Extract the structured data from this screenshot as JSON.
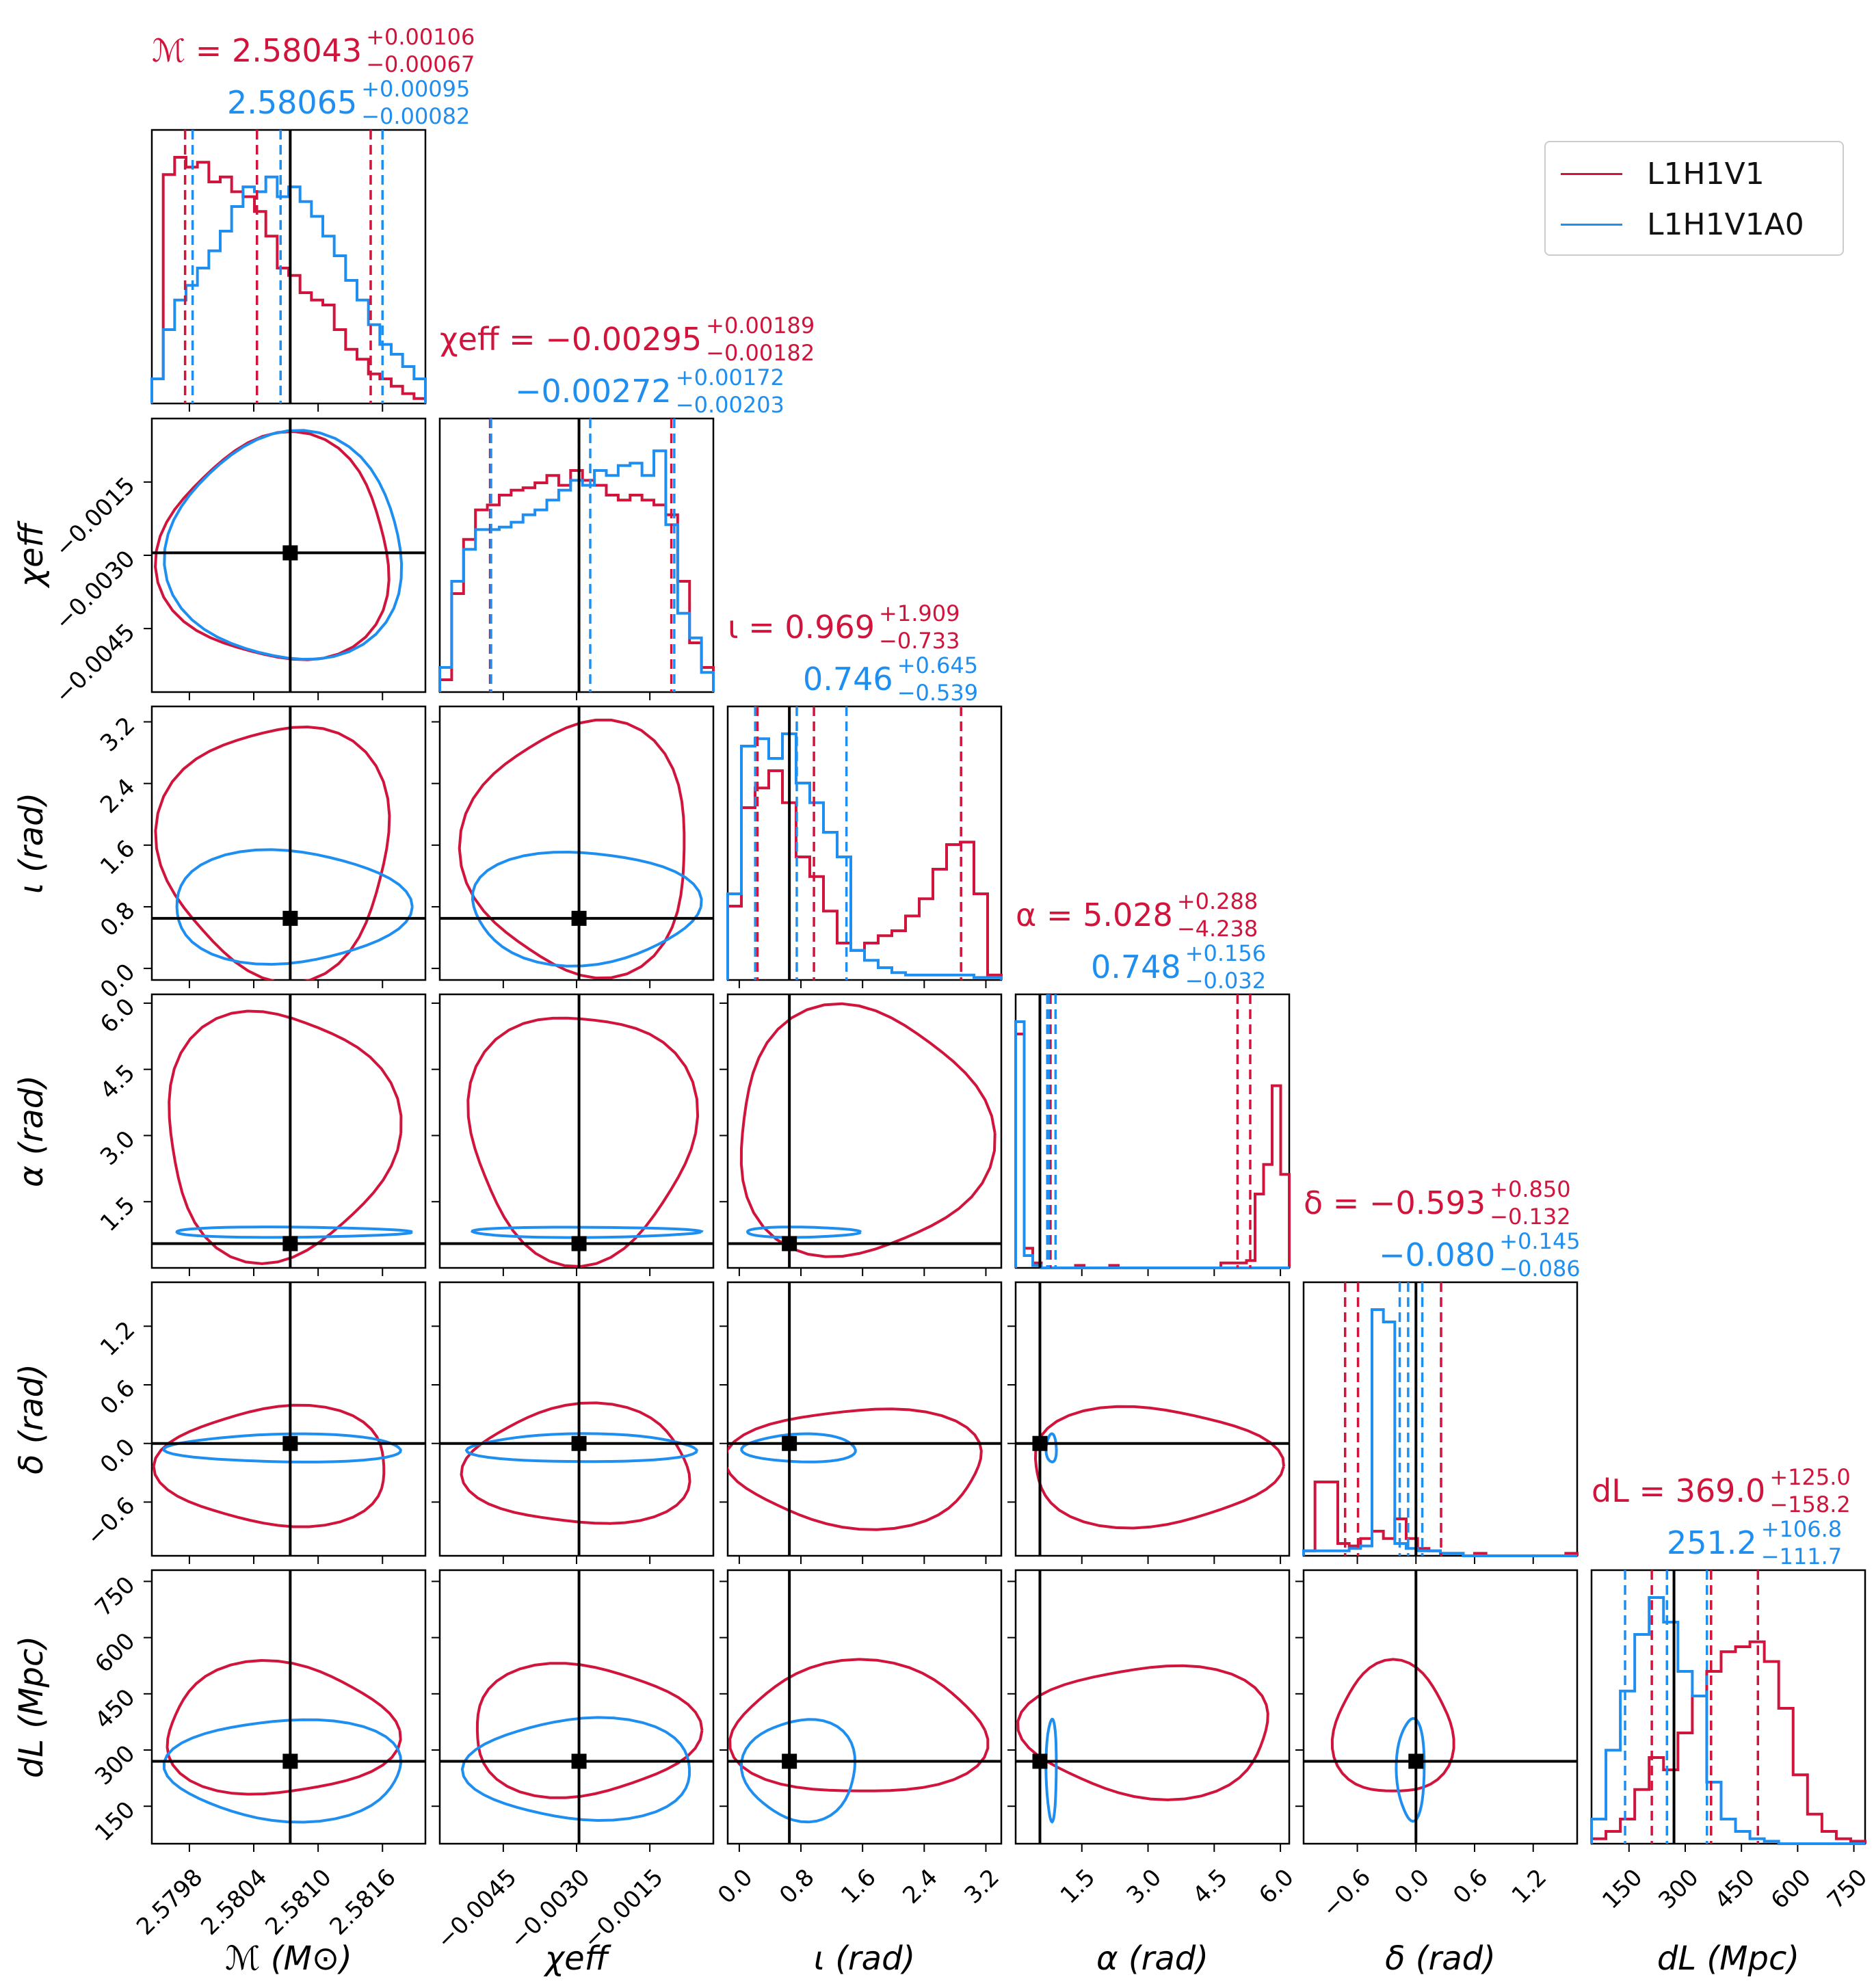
{
  "colors": {
    "net_a": "#d1143c",
    "net_b": "#1e8ff0",
    "truth": "#000000",
    "axis": "#000000"
  },
  "legend": {
    "placement": "top-right",
    "entries": [
      "L1H1V1",
      "L1H1V1A0"
    ]
  },
  "chart_data": {
    "type": "corner",
    "params": [
      {
        "key": "Mc",
        "label": "ℳ (M⊙)",
        "range": [
          2.57945,
          2.582
        ],
        "ticks": [
          2.5798,
          2.5804,
          2.581,
          2.5816
        ],
        "tick_labels": [
          "2.5798",
          "2.5804",
          "2.5810",
          "2.5816"
        ],
        "truth": 2.58074,
        "a": {
          "median": "2.58043",
          "plus": "+0.00106",
          "minus": "−0.00067",
          "q": [
            2.57976,
            2.58043,
            2.58149
          ]
        },
        "b": {
          "median": "2.58065",
          "plus": "+0.00095",
          "minus": "−0.00082",
          "q": [
            2.57983,
            2.58065,
            2.5816
          ]
        },
        "title_symbol": "ℳ = ",
        "hist_a": [
          0.1,
          0.93,
          1.0,
          0.96,
          0.98,
          0.9,
          0.92,
          0.86,
          0.84,
          0.78,
          0.68,
          0.55,
          0.52,
          0.45,
          0.42,
          0.4,
          0.3,
          0.22,
          0.18,
          0.12,
          0.1,
          0.07,
          0.04,
          0.02
        ],
        "hist_b": [
          0.1,
          0.3,
          0.42,
          0.48,
          0.55,
          0.62,
          0.7,
          0.8,
          0.88,
          0.86,
          0.92,
          0.84,
          0.88,
          0.82,
          0.76,
          0.68,
          0.6,
          0.5,
          0.42,
          0.32,
          0.24,
          0.2,
          0.15,
          0.1
        ]
      },
      {
        "key": "chi",
        "label": "χeff",
        "range": [
          -0.0058,
          -0.0002
        ],
        "ticks": [
          -0.0045,
          -0.003,
          -0.0015
        ],
        "tick_labels": [
          "−0.0045",
          "−0.0030",
          "−0.0015"
        ],
        "truth": -0.00295,
        "a": {
          "median": "−0.00295",
          "plus": "+0.00189",
          "minus": "−0.00182",
          "q": [
            -0.00477,
            -0.00295,
            -0.00106
          ]
        },
        "b": {
          "median": "−0.00272",
          "plus": "+0.00172",
          "minus": "−0.00203",
          "q": [
            -0.00475,
            -0.00272,
            -0.001
          ]
        },
        "title_symbol": "χeff = ",
        "hist_a": [
          0.05,
          0.4,
          0.62,
          0.74,
          0.76,
          0.8,
          0.82,
          0.83,
          0.85,
          0.88,
          0.84,
          0.9,
          0.86,
          0.84,
          0.8,
          0.78,
          0.8,
          0.78,
          0.76,
          0.72,
          0.45,
          0.2,
          0.1
        ],
        "hist_b": [
          0.1,
          0.45,
          0.58,
          0.66,
          0.66,
          0.67,
          0.69,
          0.72,
          0.74,
          0.78,
          0.82,
          0.86,
          0.84,
          0.9,
          0.88,
          0.92,
          0.93,
          0.88,
          0.98,
          0.68,
          0.32,
          0.22,
          0.08
        ]
      },
      {
        "key": "iota",
        "label": "ι (rad)",
        "range": [
          -0.15,
          3.4
        ],
        "ticks": [
          0.0,
          0.8,
          1.6,
          2.4,
          3.2
        ],
        "tick_labels": [
          "0.0",
          "0.8",
          "1.6",
          "2.4",
          "3.2"
        ],
        "truth": 0.65,
        "a": {
          "median": "0.969",
          "plus": "+1.909",
          "minus": "−0.733",
          "q": [
            0.236,
            0.969,
            2.878
          ]
        },
        "b": {
          "median": "0.746",
          "plus": "+0.645",
          "minus": "−0.539",
          "q": [
            0.207,
            0.746,
            1.391
          ]
        },
        "title_symbol": "ι = ",
        "hist_a": [
          0.3,
          0.7,
          0.78,
          0.85,
          0.72,
          0.5,
          0.42,
          0.28,
          0.15,
          0.12,
          0.15,
          0.18,
          0.2,
          0.26,
          0.33,
          0.45,
          0.55,
          0.56,
          0.35,
          0.02
        ],
        "hist_b": [
          0.35,
          0.95,
          0.98,
          0.9,
          1.0,
          0.8,
          0.72,
          0.6,
          0.5,
          0.12,
          0.08,
          0.05,
          0.03,
          0.02,
          0.02,
          0.02,
          0.02,
          0.02,
          0.01,
          0.01
        ]
      },
      {
        "key": "alpha",
        "label": "α (rad)",
        "range": [
          0.0,
          6.2
        ],
        "ticks": [
          1.5,
          3.0,
          4.5,
          6.0
        ],
        "tick_labels": [
          "1.5",
          "3.0",
          "4.5",
          "6.0"
        ],
        "truth": 0.55,
        "a": {
          "median": "5.028",
          "plus": "+0.288",
          "minus": "−4.238",
          "q": [
            0.79,
            5.028,
            5.316
          ]
        },
        "b": {
          "median": "0.748",
          "plus": "+0.156",
          "minus": "−0.032",
          "q": [
            0.716,
            0.748,
            0.904
          ]
        },
        "title_symbol": "α = ",
        "hist_a": [
          0.95,
          0.08,
          0.02,
          0.0,
          0.0,
          0.0,
          0.0,
          0.01,
          0.0,
          0.0,
          0.0,
          0.01,
          0.0,
          0.0,
          0.0,
          0.0,
          0.0,
          0.0,
          0.0,
          0.0,
          0.0,
          0.0,
          0.0,
          0.0,
          0.02,
          0.02,
          0.02,
          0.03,
          0.3,
          0.42,
          0.74,
          0.38
        ],
        "hist_b": [
          1.0,
          0.05,
          0.01,
          0.0,
          0.0,
          0.0,
          0.0,
          0.0,
          0.0,
          0.0,
          0.0,
          0.0,
          0.0,
          0.0,
          0.0,
          0.0,
          0.0,
          0.0,
          0.0,
          0.0,
          0.0,
          0.0,
          0.0,
          0.0,
          0.0,
          0.0,
          0.0,
          0.0,
          0.0,
          0.0,
          0.0,
          0.0
        ]
      },
      {
        "key": "delta",
        "label": "δ (rad)",
        "range": [
          -1.15,
          1.65
        ],
        "ticks": [
          -0.6,
          0.0,
          0.6,
          1.2
        ],
        "tick_labels": [
          "−0.6",
          "0.0",
          "0.6",
          "1.2"
        ],
        "truth": 0.0,
        "a": {
          "median": "−0.593",
          "plus": "+0.850",
          "minus": "−0.132",
          "q": [
            -0.725,
            -0.593,
            0.257
          ]
        },
        "b": {
          "median": "−0.080",
          "plus": "+0.145",
          "minus": "−0.086",
          "q": [
            -0.166,
            -0.08,
            0.065
          ]
        },
        "title_symbol": "δ = ",
        "hist_a": [
          0.02,
          0.3,
          0.3,
          0.05,
          0.04,
          0.07,
          0.1,
          0.07,
          0.15,
          0.07,
          0.03,
          0.02,
          0.01,
          0.01,
          0.0,
          0.01,
          0.0,
          0.0,
          0.0,
          0.0,
          0.0,
          0.0,
          0.0,
          0.01
        ],
        "hist_b": [
          0.02,
          0.02,
          0.02,
          0.02,
          0.03,
          0.04,
          1.0,
          0.95,
          0.05,
          0.03,
          0.02,
          0.02,
          0.01,
          0.01,
          0.0,
          0.0,
          0.0,
          0.0,
          0.0,
          0.0,
          0.0,
          0.0,
          0.0,
          0.0
        ]
      },
      {
        "key": "dL",
        "label": "dL (Mpc)",
        "range": [
          50,
          780
        ],
        "ticks": [
          150,
          300,
          450,
          600,
          750
        ],
        "tick_labels": [
          "150",
          "300",
          "450",
          "600",
          "750"
        ],
        "truth": 270,
        "a": {
          "median": "369.0",
          "plus": "+125.0",
          "minus": "−158.2",
          "q": [
            210.8,
            369.0,
            494.0
          ]
        },
        "b": {
          "median": "251.2",
          "plus": "+106.8",
          "minus": "−111.7",
          "q": [
            139.5,
            251.2,
            358.0
          ]
        },
        "title_symbol": "dL = ",
        "hist_a": [
          0.02,
          0.05,
          0.1,
          0.22,
          0.35,
          0.3,
          0.45,
          0.6,
          0.7,
          0.78,
          0.8,
          0.82,
          0.74,
          0.55,
          0.28,
          0.12,
          0.05,
          0.02,
          0.01
        ],
        "hist_b": [
          0.1,
          0.38,
          0.62,
          0.85,
          1.0,
          0.9,
          0.7,
          0.6,
          0.25,
          0.1,
          0.05,
          0.02,
          0.01,
          0.0,
          0.0,
          0.0,
          0.0,
          0.0,
          0.0
        ]
      }
    ]
  }
}
